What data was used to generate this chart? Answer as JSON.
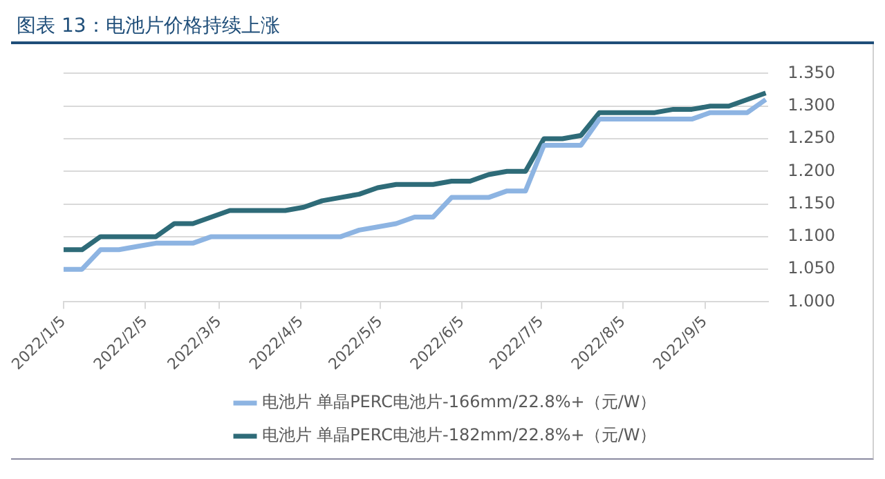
{
  "chart_data": {
    "type": "line",
    "title": "图表 13：电池片价格持续上涨",
    "x": [
      "2022-01-05",
      "2022-01-12",
      "2022-01-19",
      "2022-01-26",
      "2022-02-02",
      "2022-02-09",
      "2022-02-16",
      "2022-02-23",
      "2022-03-02",
      "2022-03-09",
      "2022-03-16",
      "2022-03-23",
      "2022-03-30",
      "2022-04-06",
      "2022-04-13",
      "2022-04-20",
      "2022-04-27",
      "2022-05-04",
      "2022-05-11",
      "2022-05-18",
      "2022-05-25",
      "2022-06-01",
      "2022-06-08",
      "2022-06-15",
      "2022-06-22",
      "2022-06-29",
      "2022-07-06",
      "2022-07-13",
      "2022-07-20",
      "2022-07-27",
      "2022-08-03",
      "2022-08-10",
      "2022-08-17",
      "2022-08-24",
      "2022-08-31",
      "2022-09-07",
      "2022-09-14",
      "2022-09-21",
      "2022-09-28"
    ],
    "series": [
      {
        "name": "电池片 单晶PERC电池片-166mm/22.8%+（元/W）",
        "color": "#8db4e2",
        "values": [
          1.05,
          1.05,
          1.08,
          1.08,
          1.085,
          1.09,
          1.09,
          1.09,
          1.1,
          1.1,
          1.1,
          1.1,
          1.1,
          1.1,
          1.1,
          1.1,
          1.11,
          1.115,
          1.12,
          1.13,
          1.13,
          1.16,
          1.16,
          1.16,
          1.17,
          1.17,
          1.24,
          1.24,
          1.24,
          1.28,
          1.28,
          1.28,
          1.28,
          1.28,
          1.28,
          1.29,
          1.29,
          1.29,
          1.31
        ]
      },
      {
        "name": "电池片 单晶PERC电池片-182mm/22.8%+（元/W）",
        "color": "#2e6b78",
        "values": [
          1.08,
          1.08,
          1.1,
          1.1,
          1.1,
          1.1,
          1.12,
          1.12,
          1.13,
          1.14,
          1.14,
          1.14,
          1.14,
          1.145,
          1.155,
          1.16,
          1.165,
          1.175,
          1.18,
          1.18,
          1.18,
          1.185,
          1.185,
          1.195,
          1.2,
          1.2,
          1.25,
          1.25,
          1.255,
          1.29,
          1.29,
          1.29,
          1.29,
          1.295,
          1.295,
          1.3,
          1.3,
          1.31,
          1.32
        ]
      }
    ],
    "xlim": [
      "2022-01-05",
      "2022-09-29"
    ],
    "xticks": [
      {
        "value": "2022-01-05",
        "label": "2022/1/5"
      },
      {
        "value": "2022-02-05",
        "label": "2022/2/5"
      },
      {
        "value": "2022-03-05",
        "label": "2022/3/5"
      },
      {
        "value": "2022-04-05",
        "label": "2022/4/5"
      },
      {
        "value": "2022-05-05",
        "label": "2022/5/5"
      },
      {
        "value": "2022-06-05",
        "label": "2022/6/5"
      },
      {
        "value": "2022-07-05",
        "label": "2022/7/5"
      },
      {
        "value": "2022-08-05",
        "label": "2022/8/5"
      },
      {
        "value": "2022-09-05",
        "label": "2022/9/5"
      }
    ],
    "ylim": [
      1.0,
      1.35
    ],
    "yticks": [
      {
        "value": 1.0,
        "label": "1.000"
      },
      {
        "value": 1.05,
        "label": "1.050"
      },
      {
        "value": 1.1,
        "label": "1.100"
      },
      {
        "value": 1.15,
        "label": "1.150"
      },
      {
        "value": 1.2,
        "label": "1.200"
      },
      {
        "value": 1.25,
        "label": "1.250"
      },
      {
        "value": 1.3,
        "label": "1.300"
      },
      {
        "value": 1.35,
        "label": "1.350"
      }
    ],
    "grid": "y",
    "legend": "bottom",
    "marker": "none",
    "line_style": "solid"
  }
}
